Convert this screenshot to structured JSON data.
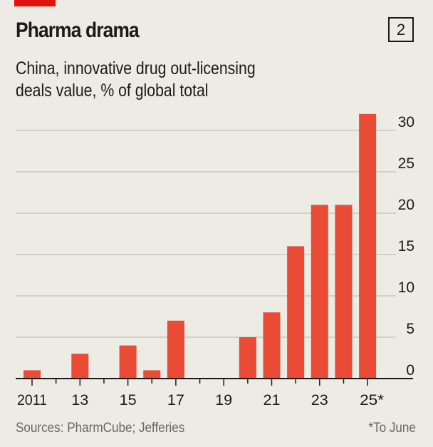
{
  "header": {
    "title": "Pharma drama",
    "badge": "2",
    "subtitle_lines": [
      "China, innovative drug out-licensing",
      "deals value, % of global total"
    ]
  },
  "footer": {
    "sources": "Sources: PharmCube; Jefferies",
    "note": "*To June"
  },
  "colors": {
    "bar": "#e94b35",
    "accent": "#e3120b",
    "background": "#ecebe4"
  },
  "chart_data": {
    "type": "bar",
    "title": "Pharma drama",
    "subtitle": "China, innovative drug out-licensing deals value, % of global total",
    "categories": [
      2011,
      2012,
      2013,
      2014,
      2015,
      2016,
      2017,
      2018,
      2019,
      2020,
      2021,
      2022,
      2023,
      2024,
      2025
    ],
    "values": [
      1,
      0,
      3,
      0,
      4,
      1,
      7,
      0,
      0,
      5,
      8,
      16,
      21,
      21,
      32
    ],
    "x_tick_labels": [
      {
        "year": 2011,
        "label": "2011"
      },
      {
        "year": 2013,
        "label": "13"
      },
      {
        "year": 2015,
        "label": "15"
      },
      {
        "year": 2017,
        "label": "17"
      },
      {
        "year": 2019,
        "label": "19"
      },
      {
        "year": 2021,
        "label": "21"
      },
      {
        "year": 2023,
        "label": "23"
      },
      {
        "year": 2025,
        "label": "25*"
      }
    ],
    "y_ticks": [
      0,
      5,
      10,
      15,
      20,
      25,
      30
    ],
    "ylim": [
      0,
      30
    ],
    "y_axis_side": "right",
    "grid": true
  }
}
